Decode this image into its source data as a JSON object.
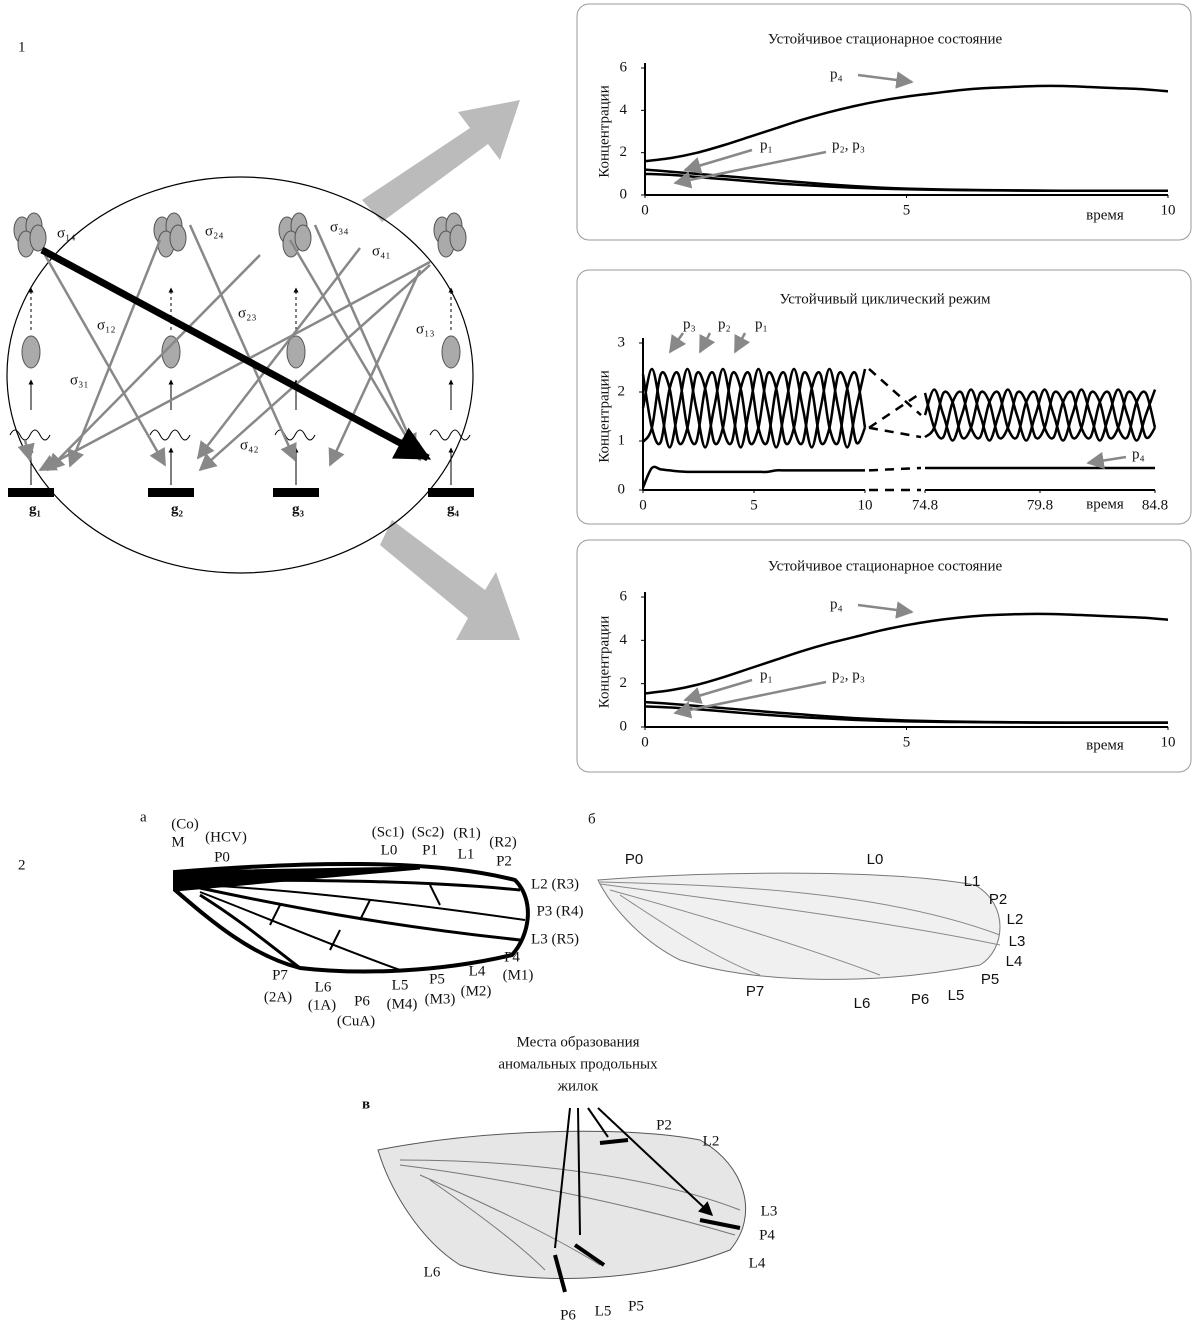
{
  "panel_labels": [
    "1",
    "2"
  ],
  "network": {
    "edge_labels": [
      "σ₁₄",
      "σ₂₄",
      "σ₃₄",
      "σ₄₁",
      "σ₁₂",
      "σ₂₃",
      "σ₁₃",
      "σ₃₁",
      "σ₄₂"
    ],
    "gene_labels": [
      "g₁",
      "g₂",
      "g₃",
      "g₄"
    ]
  },
  "chart_data": [
    {
      "type": "line",
      "title": "Устойчивое стационарное состояние",
      "ylabel": "Концентрации",
      "xlabel": "время",
      "x": [
        0,
        0.5,
        1,
        1.5,
        2,
        2.5,
        3,
        3.5,
        4,
        4.5,
        5,
        5.5,
        6,
        6.5,
        7,
        7.5,
        8,
        8.5,
        9,
        9.5,
        10
      ],
      "series": [
        {
          "color": "#000000",
          "values": [
            1.6,
            1.75,
            2.0,
            2.35,
            2.75,
            3.15,
            3.55,
            3.9,
            4.2,
            4.45,
            4.65,
            4.8,
            4.95,
            5.05,
            5.1,
            5.15,
            5.15,
            5.1,
            5.05,
            5.0,
            4.9
          ]
        },
        {
          "color": "#000000",
          "values": [
            1.2,
            1.1,
            1.0,
            0.9,
            0.8,
            0.7,
            0.6,
            0.5,
            0.42,
            0.35,
            0.3,
            0.27,
            0.25,
            0.23,
            0.22,
            0.21,
            0.2,
            0.2,
            0.2,
            0.2,
            0.2
          ]
        },
        {
          "color": "#000000",
          "values": [
            1.0,
            0.95,
            0.85,
            0.75,
            0.65,
            0.55,
            0.47,
            0.4,
            0.34,
            0.3,
            0.27,
            0.25,
            0.23,
            0.22,
            0.21,
            0.2,
            0.2,
            0.2,
            0.2,
            0.2,
            0.2
          ]
        }
      ],
      "xlim": [
        0,
        10
      ],
      "ylim": [
        0,
        6
      ],
      "xticks": [
        0,
        5,
        10
      ],
      "yticks": [
        0,
        2,
        4,
        6
      ],
      "annotations": [
        "p₄",
        "p₁",
        "p₂, p₃"
      ]
    },
    {
      "type": "line",
      "title": "Устойчивый циклический режим",
      "ylabel": "Концентрации",
      "xlabel": "время",
      "x": [
        0,
        0.4,
        0.8,
        1.2,
        1.6,
        2,
        2.4,
        2.8,
        3.2,
        3.6,
        4,
        4.4,
        4.8,
        5.2,
        5.6,
        6,
        6.4,
        6.8,
        7.2,
        7.6,
        8,
        8.4,
        8.8,
        9.2,
        9.6,
        10,
        74.8,
        75.2,
        75.6,
        76,
        76.4,
        76.8,
        77.2,
        77.6,
        78,
        78.4,
        78.8,
        79.2,
        79.6,
        80,
        80.4,
        80.8,
        81.2,
        81.6,
        82,
        82.4,
        82.8,
        83.2,
        83.6,
        84,
        84.4,
        84.8
      ],
      "x_segments": [
        {
          "xlim": [
            0,
            10
          ],
          "xticks": [
            0,
            5,
            10
          ]
        },
        {
          "xlim": [
            74.8,
            84.8
          ],
          "xticks": [
            74.8,
            79.8,
            84.8
          ]
        }
      ],
      "ylim": [
        0,
        3
      ],
      "yticks": [
        0,
        1,
        2,
        3
      ],
      "series": [
        {
          "color": "#000000",
          "values": [
            1.67,
            2.47,
            1.67,
            0.87,
            1.67,
            2.47,
            1.67,
            0.87,
            1.67,
            2.47,
            1.67,
            0.87,
            1.67,
            2.47,
            1.67,
            0.87,
            1.67,
            2.47,
            1.67,
            0.87,
            1.67,
            2.47,
            1.67,
            0.87,
            1.67,
            2.47,
            1.53,
            2.05,
            1.53,
            1.01,
            1.53,
            2.05,
            1.53,
            1.01,
            1.53,
            2.05,
            1.53,
            1.01,
            1.53,
            2.05,
            1.53,
            1.01,
            1.53,
            2.05,
            1.53,
            1.01,
            1.53,
            2.05,
            1.53,
            1.01,
            1.53,
            2.05
          ]
        },
        {
          "color": "#000000",
          "values": [
            2.36,
            1.27,
            0.98,
            2.07,
            2.36,
            1.27,
            0.98,
            2.07,
            2.36,
            1.27,
            0.98,
            2.07,
            2.36,
            1.27,
            0.98,
            2.07,
            2.36,
            1.27,
            0.98,
            2.07,
            2.36,
            1.27,
            0.98,
            2.07,
            2.36,
            1.27,
            1.98,
            1.27,
            1.08,
            1.79,
            1.98,
            1.27,
            1.08,
            1.79,
            1.98,
            1.27,
            1.08,
            1.79,
            1.98,
            1.27,
            1.08,
            1.79,
            1.98,
            1.27,
            1.08,
            1.79,
            1.98,
            1.27,
            1.08,
            1.79,
            1.98,
            1.27
          ]
        },
        {
          "color": "#000000",
          "values": [
            0.98,
            1.27,
            2.36,
            2.07,
            0.98,
            1.27,
            2.36,
            2.07,
            0.98,
            1.27,
            2.36,
            2.07,
            0.98,
            1.27,
            2.36,
            2.07,
            0.98,
            1.27,
            2.36,
            2.07,
            0.98,
            1.27,
            2.36,
            2.07,
            0.98,
            1.27,
            1.08,
            1.27,
            1.98,
            1.79,
            1.08,
            1.27,
            1.98,
            1.79,
            1.08,
            1.27,
            1.98,
            1.79,
            1.08,
            1.27,
            1.98,
            1.79,
            1.08,
            1.27,
            1.98,
            1.79,
            1.08,
            1.27,
            1.98,
            1.79,
            1.08,
            1.27
          ]
        },
        {
          "color": "#000000",
          "values": [
            0.05,
            0.45,
            0.42,
            0.4,
            0.38,
            0.37,
            0.37,
            0.37,
            0.37,
            0.37,
            0.37,
            0.37,
            0.37,
            0.37,
            0.37,
            0.4,
            0.4,
            0.4,
            0.4,
            0.4,
            0.4,
            0.4,
            0.4,
            0.4,
            0.4,
            0.4,
            0.45,
            0.45,
            0.45,
            0.45,
            0.45,
            0.45,
            0.45,
            0.45,
            0.45,
            0.45,
            0.45,
            0.45,
            0.45,
            0.45,
            0.45,
            0.45,
            0.45,
            0.45,
            0.45,
            0.45,
            0.45,
            0.45,
            0.45,
            0.45,
            0.45,
            0.45
          ]
        }
      ],
      "annotations": [
        "p₃",
        "p₂",
        "p₁",
        "p₄"
      ]
    },
    {
      "type": "line",
      "title": "Устойчивое стационарное состояние",
      "ylabel": "Концентрации",
      "xlabel": "время",
      "x": [
        0,
        0.5,
        1,
        1.5,
        2,
        2.5,
        3,
        3.5,
        4,
        4.5,
        5,
        5.5,
        6,
        6.5,
        7,
        7.5,
        8,
        8.5,
        9,
        9.5,
        10
      ],
      "series": [
        {
          "color": "#000000",
          "values": [
            1.55,
            1.7,
            1.95,
            2.3,
            2.7,
            3.1,
            3.5,
            3.85,
            4.15,
            4.45,
            4.7,
            4.9,
            5.05,
            5.15,
            5.2,
            5.22,
            5.2,
            5.15,
            5.1,
            5.05,
            4.95
          ]
        },
        {
          "color": "#000000",
          "values": [
            1.15,
            1.07,
            0.97,
            0.87,
            0.77,
            0.67,
            0.58,
            0.49,
            0.41,
            0.35,
            0.3,
            0.27,
            0.25,
            0.23,
            0.22,
            0.21,
            0.2,
            0.2,
            0.2,
            0.2,
            0.2
          ]
        },
        {
          "color": "#000000",
          "values": [
            0.95,
            0.9,
            0.82,
            0.72,
            0.62,
            0.53,
            0.45,
            0.39,
            0.33,
            0.29,
            0.26,
            0.24,
            0.23,
            0.22,
            0.21,
            0.2,
            0.2,
            0.2,
            0.2,
            0.2,
            0.2
          ]
        }
      ],
      "xlim": [
        0,
        10
      ],
      "ylim": [
        0,
        6
      ],
      "xticks": [
        0,
        5,
        10
      ],
      "yticks": [
        0,
        2,
        4,
        6
      ],
      "annotations": [
        "p₄",
        "p₁",
        "p₂, p₃"
      ]
    }
  ],
  "wings": {
    "a": {
      "label": "а",
      "veins": [
        "(Co)",
        "M",
        "(HCV)",
        "P0",
        "(Sc1)",
        "(Sc2)",
        "(R1)",
        "(R2)",
        "L0",
        "P1",
        "L1",
        "P2",
        "L2 (R3)",
        "P3 (R4)",
        "L3 (R5)",
        "P4",
        "(M1)",
        "L4",
        "(M2)",
        "P5",
        "(M3)",
        "L5",
        "(M4)",
        "P6",
        "(CuA)",
        "L6",
        "(1A)",
        "P7",
        "(2A)"
      ]
    },
    "b": {
      "label": "б",
      "veins": [
        "P0",
        "L0",
        "L1",
        "P2",
        "L2",
        "L3",
        "L4",
        "P5",
        "L5",
        "P6",
        "L6",
        "P7"
      ]
    },
    "c": {
      "label": "в",
      "caption": [
        "Места образования",
        "аномальных продольных",
        "жилок"
      ],
      "veins": [
        "P2",
        "L2",
        "L3",
        "P4",
        "L4",
        "L6",
        "P6",
        "L5",
        "P5"
      ]
    }
  }
}
